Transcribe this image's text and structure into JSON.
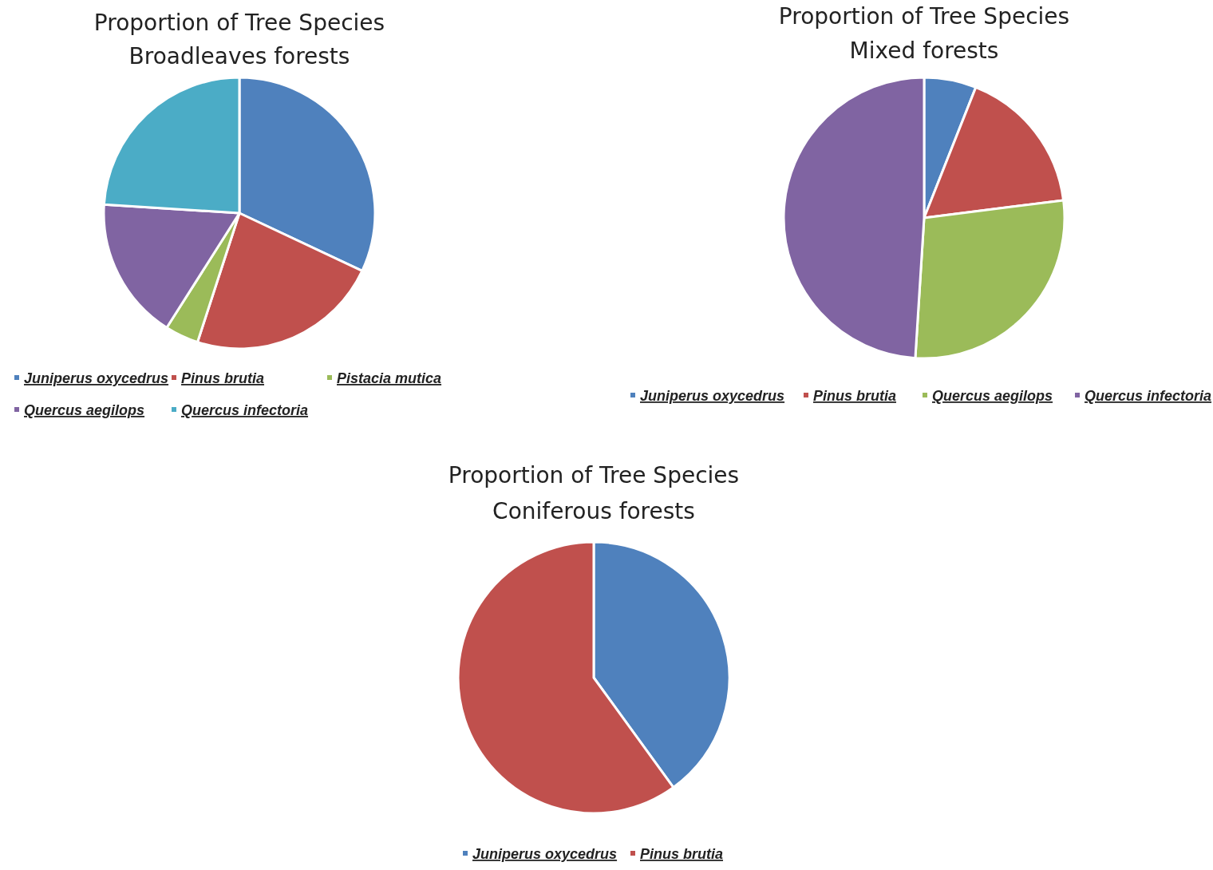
{
  "chart_data": [
    {
      "type": "pie",
      "title": "Proportion of Tree Species",
      "subtitle": "Broadleaves forests",
      "categories": [
        "Juniperus oxycedrus",
        "Pinus brutia",
        "Pistacia mutica",
        "Quercus aegilops",
        "Quercus infectoria"
      ],
      "values": [
        32,
        23,
        4,
        17,
        24
      ],
      "colors": [
        "#4f81bd",
        "#c0504d",
        "#9bbb59",
        "#8064a2",
        "#4bacc6"
      ],
      "legend": "bottom"
    },
    {
      "type": "pie",
      "title": "Proportion of Tree Species",
      "subtitle": "Mixed forests",
      "categories": [
        "Juniperus oxycedrus",
        "Pinus brutia",
        "Quercus aegilops",
        "Quercus infectoria"
      ],
      "values": [
        6,
        17,
        28,
        49
      ],
      "colors": [
        "#4f81bd",
        "#c0504d",
        "#9bbb59",
        "#8064a2"
      ],
      "legend": "bottom"
    },
    {
      "type": "pie",
      "title": "Proportion of Tree Species",
      "subtitle": "Coniferous forests",
      "categories": [
        "Juniperus oxycedrus",
        "Pinus brutia"
      ],
      "values": [
        40,
        60
      ],
      "colors": [
        "#4f81bd",
        "#c0504d"
      ],
      "legend": "bottom"
    }
  ]
}
